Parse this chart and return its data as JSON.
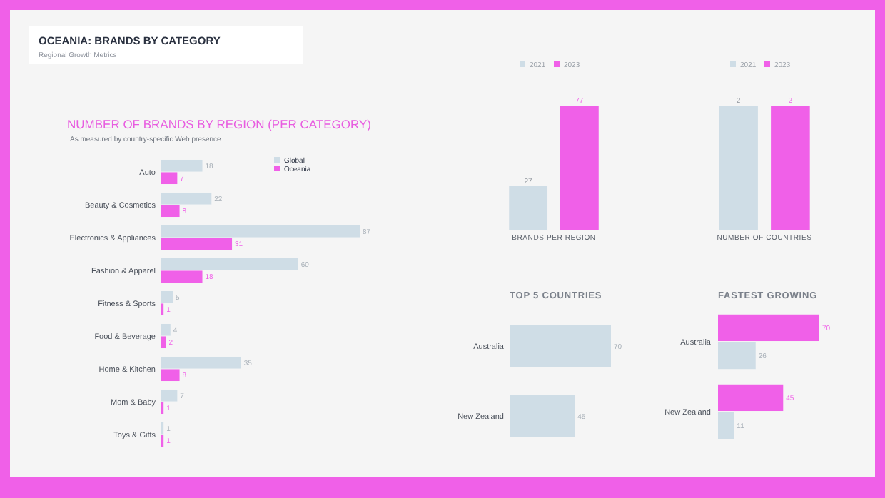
{
  "chart_data": [
    {
      "type": "other",
      "title": "OCEANIA: BRANDS BY CATEGORY",
      "subtitle": "Regional Growth Metrics"
    },
    {
      "type": "bar",
      "orientation": "horizontal",
      "title": "NUMBER OF BRANDS BY REGION (PER CATEGORY)",
      "subtitle": "As measured by country-specific Web presence",
      "categories": [
        "Auto",
        "Beauty & Cosmetics",
        "Electronics & Appliances",
        "Fashion & Apparel",
        "Fitness & Sports",
        "Food & Beverage",
        "Home & Kitchen",
        "Mom & Baby",
        "Toys & Gifts"
      ],
      "series": [
        {
          "name": "Global",
          "color": "#cfdde6",
          "values": [
            18,
            22,
            87,
            60,
            5,
            4,
            35,
            7,
            1
          ]
        },
        {
          "name": "Oceania",
          "color": "#f060e8",
          "values": [
            7,
            8,
            31,
            18,
            1,
            2,
            8,
            1,
            1
          ]
        }
      ],
      "data_labels": true,
      "legend": "top right"
    },
    {
      "type": "bar",
      "xlabel": "BRANDS PER REGION",
      "categories": [
        null
      ],
      "series": [
        {
          "name": "2021",
          "color": "#cfdde6",
          "values": [
            27
          ]
        },
        {
          "name": "2023",
          "color": "#f060e8",
          "values": [
            77
          ]
        }
      ],
      "data_labels": true,
      "legend": "top"
    },
    {
      "type": "bar",
      "xlabel": "NUMBER OF COUNTRIES",
      "categories": [
        null
      ],
      "series": [
        {
          "name": "2021",
          "color": "#cfdde6",
          "values": [
            2
          ]
        },
        {
          "name": "2023",
          "color": "#f060e8",
          "values": [
            2
          ]
        }
      ],
      "data_labels": true,
      "legend": "top"
    },
    {
      "type": "bar",
      "orientation": "horizontal",
      "title": "TOP 5 COUNTRIES",
      "categories": [
        "Australia",
        "New Zealand"
      ],
      "values": [
        70,
        45
      ],
      "color": "#cfdde6",
      "data_labels": true
    },
    {
      "type": "bar",
      "orientation": "horizontal",
      "title": "FASTEST GROWING",
      "categories": [
        "Australia",
        "New Zealand"
      ],
      "series": [
        {
          "color": "#f060e8",
          "values": [
            70,
            45
          ]
        },
        {
          "color": "#cfdde6",
          "values": [
            26,
            11
          ]
        }
      ],
      "data_labels": true
    }
  ]
}
